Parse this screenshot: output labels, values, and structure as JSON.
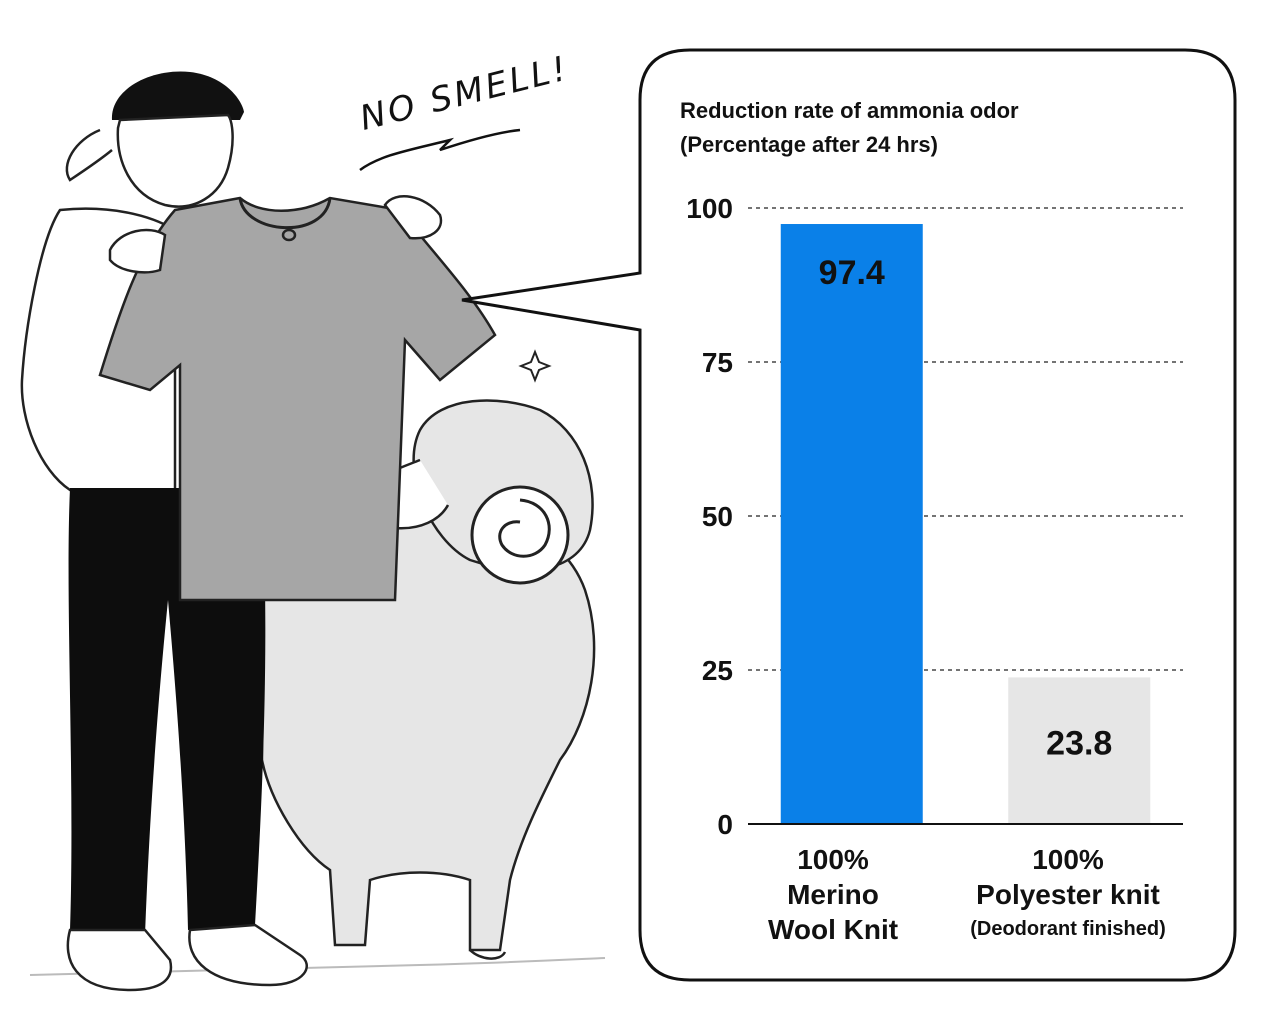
{
  "illustration": {
    "exclamation": "NO SMELL!"
  },
  "chart_data": {
    "type": "bar",
    "title": "Reduction rate of ammonia odor",
    "subtitle": "(Percentage after 24 hrs)",
    "ylim": [
      0,
      100
    ],
    "yticks": [
      0,
      25,
      50,
      75,
      100
    ],
    "grid": true,
    "categories": [
      {
        "lines": [
          "100%",
          "Merino",
          "Wool Knit"
        ],
        "note": ""
      },
      {
        "lines": [
          "100%",
          "Polyester knit"
        ],
        "note": "(Deodorant finished)"
      }
    ],
    "values": [
      97.4,
      23.8
    ],
    "value_labels": [
      "97.4",
      "23.8"
    ],
    "colors": [
      "#0a80e8",
      "#e6e6e6"
    ]
  }
}
